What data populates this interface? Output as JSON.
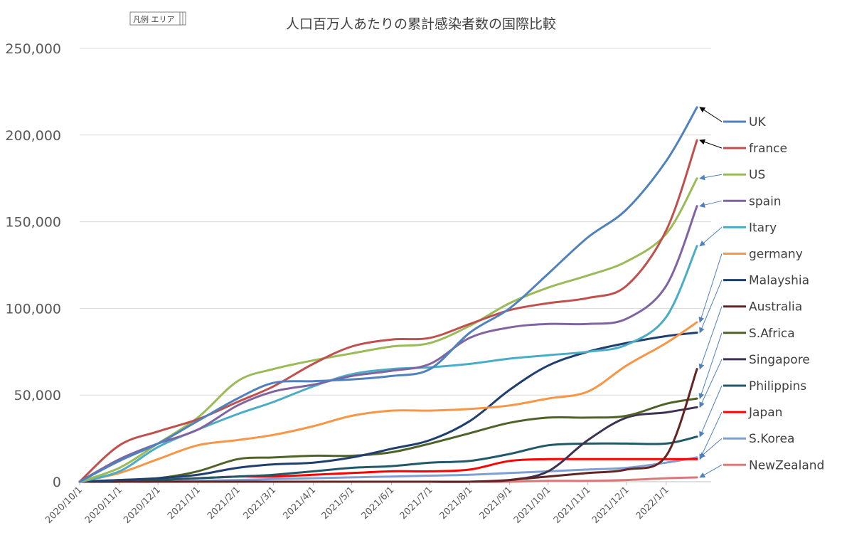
{
  "legend_area_tag": "凡例 エリア",
  "chart_data": {
    "type": "line",
    "title": "人口百万人あたりの累計感染者数の国際比較",
    "xlabel": "",
    "ylabel": "",
    "ylim": [
      0,
      250000
    ],
    "yticks": [
      0,
      50000,
      100000,
      150000,
      200000,
      250000
    ],
    "ytick_labels": [
      "0",
      "50,000",
      "100,000",
      "150,000",
      "200,000",
      "250,000"
    ],
    "xlim": [
      "2020-10-01",
      "2022-02-05"
    ],
    "xtick_labels": [
      "2020/10/1",
      "2020/11/1",
      "2020/12/1",
      "2021/1/1",
      "2021/2/1",
      "2021/3/1",
      "2021/4/1",
      "2021/5/1",
      "2021/6/1",
      "2021/7/1",
      "2021/8/1",
      "2021/9/1",
      "2021/10/1",
      "2021/11/1",
      "2021/12/1",
      "2022/1/1"
    ],
    "grid": "horizontal",
    "legend_position": "right",
    "x": [
      "2020-10-01",
      "2020-11-01",
      "2020-12-01",
      "2021-01-01",
      "2021-02-01",
      "2021-03-01",
      "2021-04-01",
      "2021-05-01",
      "2021-06-01",
      "2021-07-01",
      "2021-08-01",
      "2021-09-01",
      "2021-10-01",
      "2021-11-01",
      "2021-12-01",
      "2022-01-01",
      "2022-01-25"
    ],
    "series": [
      {
        "name": "UK",
        "color": "#4f81bd",
        "values": [
          0,
          12000,
          22000,
          35000,
          48000,
          57000,
          58000,
          59000,
          61000,
          65000,
          86000,
          100000,
          120000,
          141000,
          157000,
          185000,
          216000
        ]
      },
      {
        "name": "france",
        "color": "#c0504d",
        "values": [
          0,
          21000,
          29000,
          36000,
          46000,
          55000,
          68000,
          78000,
          82000,
          83000,
          91000,
          99000,
          103000,
          106000,
          113000,
          145000,
          197000
        ]
      },
      {
        "name": "US",
        "color": "#9bbb59",
        "values": [
          0,
          8000,
          22000,
          37000,
          58000,
          65000,
          70000,
          74000,
          78000,
          80000,
          90000,
          103000,
          112000,
          119000,
          127000,
          143000,
          175000
        ]
      },
      {
        "name": "spain",
        "color": "#8064a2",
        "values": [
          0,
          13000,
          22000,
          30000,
          44000,
          52000,
          56000,
          61000,
          64000,
          68000,
          83000,
          89000,
          91000,
          91000,
          94000,
          113000,
          159000
        ]
      },
      {
        "name": "Itary",
        "color": "#4bacc6",
        "values": [
          0,
          6000,
          20000,
          30000,
          39000,
          46000,
          55000,
          62000,
          65000,
          66000,
          68000,
          71000,
          73000,
          75000,
          79000,
          95000,
          136000
        ]
      },
      {
        "name": "germany",
        "color": "#f79646",
        "values": [
          0,
          5000,
          13000,
          21000,
          24000,
          27000,
          32000,
          38000,
          41000,
          41000,
          42000,
          44000,
          48000,
          52000,
          67000,
          80000,
          92000
        ]
      },
      {
        "name": "Malayshia",
        "color": "#1f3f6e",
        "values": [
          0,
          1000,
          2000,
          4000,
          8000,
          10000,
          11000,
          14000,
          19000,
          24000,
          35000,
          53000,
          67000,
          75000,
          80000,
          84000,
          86000
        ]
      },
      {
        "name": "Australia",
        "color": "#632523",
        "values": [
          0,
          0,
          0,
          0,
          0,
          0,
          0,
          0,
          0,
          0,
          0,
          1000,
          3000,
          5000,
          7000,
          15000,
          65000
        ]
      },
      {
        "name": "S.Africa",
        "color": "#4f6228",
        "values": [
          0,
          1000,
          2000,
          6000,
          13000,
          14000,
          15000,
          15000,
          17000,
          22000,
          28000,
          34000,
          37000,
          37000,
          38000,
          45000,
          48000
        ]
      },
      {
        "name": "Singapore",
        "color": "#3f3151",
        "values": [
          0,
          0,
          0,
          0,
          0,
          0,
          0,
          0,
          0,
          0,
          0,
          1000,
          6000,
          24000,
          37000,
          40000,
          43000
        ]
      },
      {
        "name": "Philippins",
        "color": "#215968",
        "values": [
          0,
          0,
          1000,
          2000,
          3000,
          4000,
          6000,
          8000,
          9000,
          11000,
          12000,
          16000,
          21000,
          22000,
          22000,
          22000,
          26000
        ]
      },
      {
        "name": "Japan",
        "color": "#ff0000",
        "values": [
          0,
          500,
          1000,
          2000,
          3000,
          3000,
          4000,
          5000,
          6000,
          6000,
          7000,
          12000,
          13000,
          13000,
          13000,
          13000,
          13000
        ]
      },
      {
        "name": "S.Korea",
        "color": "#7f9fd3",
        "values": [
          0,
          0,
          0,
          500,
          1000,
          1500,
          2000,
          2500,
          3000,
          3500,
          4000,
          5000,
          6000,
          7000,
          8000,
          11000,
          14000
        ]
      },
      {
        "name": "NewZealand",
        "color": "#d9797a",
        "values": [
          0,
          0,
          0,
          0,
          0,
          0,
          0,
          0,
          0,
          0,
          0,
          0,
          500,
          500,
          1000,
          2000,
          2500
        ]
      }
    ]
  }
}
